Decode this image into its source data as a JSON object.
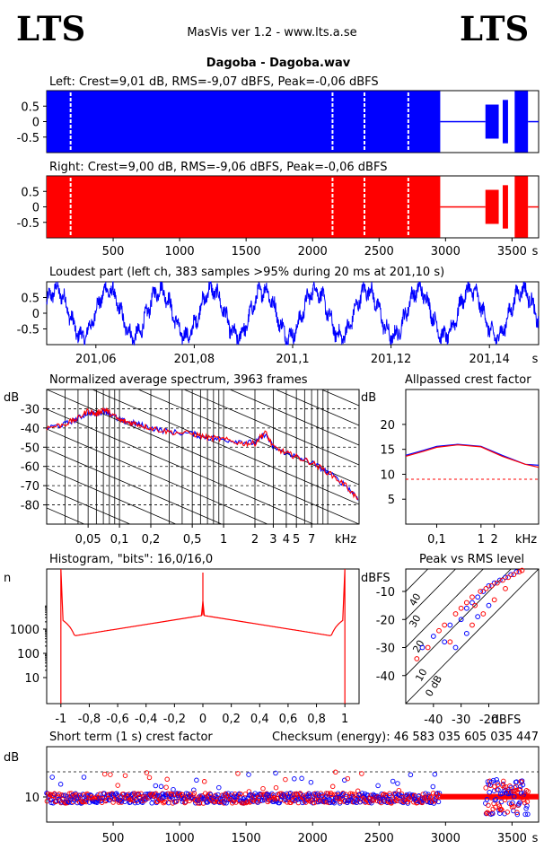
{
  "header": {
    "logo_left": "LTS",
    "logo_right": "LTS",
    "app_title": "MasVis ver 1.2 - www.lts.a.se",
    "track_title": "Dagoba - Dagoba.wav"
  },
  "colors": {
    "left": "#0000ff",
    "right": "#ff0000",
    "ink": "#000000"
  },
  "chart_data": [
    {
      "id": "left_waveform",
      "type": "area",
      "title": "Left: Crest=9,01 dB, RMS=-9,07 dBFS, Peak=-0,06 dBFS",
      "xlim": [
        0,
        3700
      ],
      "ylim": [
        -1,
        1
      ],
      "y_ticks": [
        "0.5",
        "0",
        "-0.5"
      ],
      "series": [
        {
          "values": [
            [
              0,
              2960,
              0.99
            ],
            [
              2960,
              3300,
              0.02
            ],
            [
              3300,
              3400,
              0.55
            ],
            [
              3430,
              3470,
              0.7
            ],
            [
              3520,
              3620,
              0.99
            ],
            [
              3620,
              3700,
              0.02
            ]
          ]
        }
      ]
    },
    {
      "id": "right_waveform",
      "type": "area",
      "title": "Right: Crest=9,00 dB, RMS=-9,06 dBFS, Peak=-0,06 dBFS",
      "xlim": [
        0,
        3700
      ],
      "ylim": [
        -1,
        1
      ],
      "y_ticks": [
        "0.5",
        "0",
        "-0.5"
      ],
      "x_ticks": [
        "500",
        "1000",
        "1500",
        "2000",
        "2500",
        "3000",
        "3500"
      ],
      "x_unit": "s",
      "series": [
        {
          "values": [
            [
              0,
              2960,
              0.99
            ],
            [
              2960,
              3300,
              0.02
            ],
            [
              3300,
              3400,
              0.55
            ],
            [
              3430,
              3470,
              0.7
            ],
            [
              3520,
              3620,
              0.99
            ],
            [
              3620,
              3700,
              0.02
            ]
          ]
        }
      ]
    },
    {
      "id": "loudest_part",
      "type": "line",
      "title": "Loudest part (left  ch, 383 samples >95% during 20 ms at 201,10 s)",
      "xlim": [
        201.05,
        201.15
      ],
      "ylim": [
        -1,
        1
      ],
      "y_ticks": [
        "0.5",
        "0",
        "-0.5"
      ],
      "x_ticks": [
        "201,06",
        "201,08",
        "201,1",
        "201,12",
        "201,14"
      ],
      "x_unit": "s"
    },
    {
      "id": "spectrum",
      "type": "line",
      "title": "Normalized average spectrum, 3963 frames",
      "ylabel": "dB",
      "xlim": [
        0.02,
        20
      ],
      "ylim": [
        -90,
        -20
      ],
      "y_ticks": [
        "-30",
        "-40",
        "-50",
        "-60",
        "-70",
        "-80"
      ],
      "x_ticks": [
        "0,05",
        "0,1",
        "0,2",
        "0,5",
        "1",
        "2",
        "3",
        "4",
        "5",
        "7"
      ],
      "x_unit": "kHz",
      "series": [
        {
          "color": "#ff0000",
          "values": [
            [
              0.02,
              -40
            ],
            [
              0.03,
              -38
            ],
            [
              0.04,
              -35
            ],
            [
              0.05,
              -31
            ],
            [
              0.06,
              -33
            ],
            [
              0.07,
              -30
            ],
            [
              0.08,
              -32
            ],
            [
              0.1,
              -36
            ],
            [
              0.12,
              -37
            ],
            [
              0.15,
              -38
            ],
            [
              0.2,
              -40
            ],
            [
              0.3,
              -42
            ],
            [
              0.5,
              -43
            ],
            [
              0.7,
              -45
            ],
            [
              1,
              -46
            ],
            [
              1.5,
              -48
            ],
            [
              2,
              -48
            ],
            [
              2.5,
              -42
            ],
            [
              3,
              -50
            ],
            [
              4,
              -53
            ],
            [
              5,
              -55
            ],
            [
              7,
              -58
            ],
            [
              10,
              -63
            ],
            [
              15,
              -70
            ],
            [
              20,
              -78
            ]
          ]
        },
        {
          "color": "#0000ff",
          "values": [
            [
              0.02,
              -40
            ],
            [
              0.03,
              -38
            ],
            [
              0.04,
              -35
            ],
            [
              0.05,
              -32
            ],
            [
              0.06,
              -33
            ],
            [
              0.07,
              -31
            ],
            [
              0.08,
              -32
            ],
            [
              0.1,
              -36
            ],
            [
              0.12,
              -37
            ],
            [
              0.15,
              -38
            ],
            [
              0.2,
              -40
            ],
            [
              0.3,
              -42
            ],
            [
              0.5,
              -43
            ],
            [
              0.7,
              -45
            ],
            [
              1,
              -46
            ],
            [
              1.5,
              -47
            ],
            [
              2,
              -48
            ],
            [
              2.5,
              -43
            ],
            [
              3,
              -50
            ],
            [
              4,
              -53
            ],
            [
              5,
              -55
            ],
            [
              7,
              -58
            ],
            [
              10,
              -63
            ],
            [
              15,
              -70
            ],
            [
              20,
              -77
            ]
          ]
        }
      ]
    },
    {
      "id": "allpassed_crest",
      "type": "line",
      "title": "Allpassed crest factor",
      "ylabel": "dB",
      "xlim": [
        0.02,
        20
      ],
      "ylim": [
        0,
        27
      ],
      "y_ticks": [
        "20",
        "15",
        "10",
        "5"
      ],
      "x_ticks": [
        "0,1",
        "1",
        "2",
        "kHz"
      ],
      "reference_dB": 9.0,
      "series": [
        {
          "color": "#0000ff",
          "values": [
            [
              0.02,
              13.8
            ],
            [
              0.05,
              14.8
            ],
            [
              0.1,
              15.6
            ],
            [
              0.3,
              16.0
            ],
            [
              1,
              15.6
            ],
            [
              3,
              13.8
            ],
            [
              10,
              12.0
            ],
            [
              20,
              11.8
            ]
          ]
        },
        {
          "color": "#ff0000",
          "values": [
            [
              0.02,
              13.6
            ],
            [
              0.05,
              14.6
            ],
            [
              0.1,
              15.4
            ],
            [
              0.3,
              15.9
            ],
            [
              1,
              15.5
            ],
            [
              3,
              13.6
            ],
            [
              10,
              12.0
            ],
            [
              20,
              11.4
            ]
          ]
        }
      ]
    },
    {
      "id": "histogram",
      "type": "line",
      "title": "Histogram, \"bits\": 16,0/16,0",
      "ylabel": "n",
      "xlim": [
        -1.1,
        1.1
      ],
      "y_ticks": [
        "1000",
        "100",
        "10"
      ],
      "x_ticks": [
        "-1",
        "-0,8",
        "-0,6",
        "-0,4",
        "-0,2",
        "0",
        "0,2",
        "0,4",
        "0,6",
        "0,8",
        "1"
      ],
      "series": [
        {
          "color": "#ff0000",
          "values": [
            [
              -1.0,
              4
            ],
            [
              -0.98,
              800
            ],
            [
              -0.9,
              450
            ],
            [
              -0.6,
              900
            ],
            [
              -0.2,
              2400
            ],
            [
              0,
              3700
            ],
            [
              0.2,
              2400
            ],
            [
              0.6,
              900
            ],
            [
              0.9,
              450
            ],
            [
              0.98,
              800
            ],
            [
              1.0,
              4
            ]
          ]
        }
      ]
    },
    {
      "id": "peak_vs_rms",
      "type": "scatter",
      "title": "Peak vs RMS level",
      "ylabel": "dBFS",
      "xlabel": "dBFS",
      "xlim": [
        -50,
        -2
      ],
      "ylim": [
        -50,
        -2
      ],
      "y_ticks": [
        "-10",
        "-20",
        "-30",
        "-40"
      ],
      "x_ticks": [
        "-40",
        "-30",
        "-20"
      ],
      "line_labels": [
        "40",
        "30",
        "20",
        "10",
        "0 dB"
      ],
      "series": [
        {
          "color": "#0000ff",
          "values": [
            [
              -44,
              -30
            ],
            [
              -40,
              -26
            ],
            [
              -36,
              -28
            ],
            [
              -34,
              -22
            ],
            [
              -30,
              -20
            ],
            [
              -28,
              -16
            ],
            [
              -26,
              -14
            ],
            [
              -24,
              -12
            ],
            [
              -22,
              -10
            ],
            [
              -20,
              -8
            ],
            [
              -18,
              -7
            ],
            [
              -16,
              -6
            ],
            [
              -14,
              -5
            ],
            [
              -12,
              -4
            ],
            [
              -10,
              -3
            ],
            [
              -28,
              -25
            ],
            [
              -32,
              -30
            ],
            [
              -24,
              -19
            ],
            [
              -20,
              -15
            ]
          ]
        },
        {
          "color": "#ff0000",
          "values": [
            [
              -46,
              -34
            ],
            [
              -42,
              -30
            ],
            [
              -38,
              -24
            ],
            [
              -36,
              -22
            ],
            [
              -34,
              -28
            ],
            [
              -32,
              -18
            ],
            [
              -30,
              -16
            ],
            [
              -28,
              -14
            ],
            [
              -26,
              -12
            ],
            [
              -25,
              -15
            ],
            [
              -23,
              -10
            ],
            [
              -21,
              -9
            ],
            [
              -19,
              -8
            ],
            [
              -17,
              -7
            ],
            [
              -15,
              -6
            ],
            [
              -13,
              -5
            ],
            [
              -11,
              -4
            ],
            [
              -9,
              -3
            ],
            [
              -8,
              -2.5
            ],
            [
              -22,
              -18
            ],
            [
              -18,
              -13
            ],
            [
              -26,
              -22
            ],
            [
              -14,
              -9
            ]
          ]
        }
      ]
    },
    {
      "id": "short_term_crest",
      "type": "scatter",
      "title": "Short term (1 s) crest factor",
      "checksum": "Checksum (energy):  46 583 035 605 035 447",
      "ylabel": "dB",
      "xlim": [
        0,
        3700
      ],
      "ylim": [
        0,
        30
      ],
      "y_ticks": [
        "10"
      ],
      "x_ticks": [
        "500",
        "1000",
        "1500",
        "2000",
        "2500",
        "3000",
        "3500"
      ],
      "x_unit": "s",
      "reference_dB": 20
    }
  ]
}
